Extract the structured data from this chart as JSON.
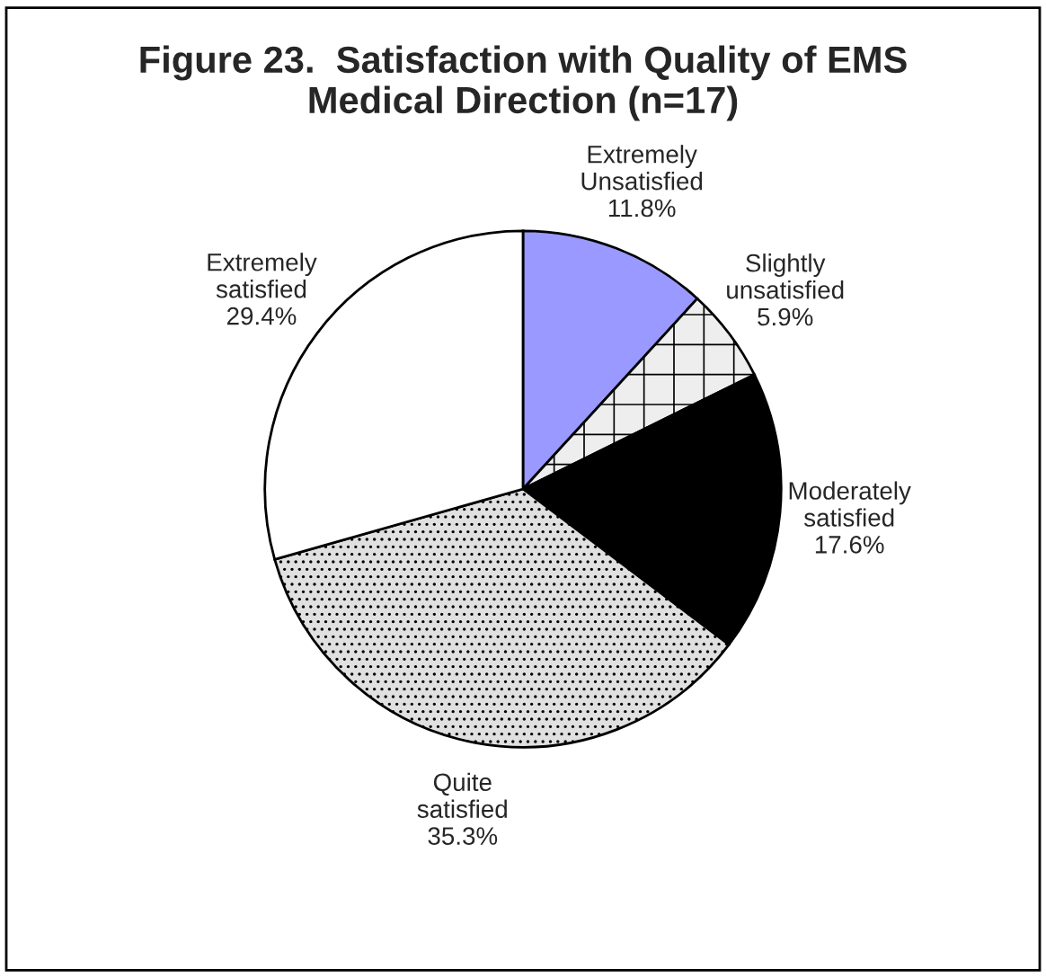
{
  "chart_data": {
    "type": "pie",
    "title": "Figure 23.  Satisfaction with Quality of EMS Medical Direction (n=17)",
    "categories": [
      "Extremely Unsatisfied",
      "Slightly unsatisfied",
      "Moderately satisfied",
      "Quite satisfied",
      "Extremely satisfied"
    ],
    "values": [
      11.8,
      5.9,
      17.6,
      35.3,
      29.4
    ],
    "colors": [
      "#9999ff",
      "#eeeeee",
      "#000000",
      "#e0e0e0",
      "#ffffff"
    ],
    "value_labels": [
      "11.8%",
      "5.9%",
      "17.6%",
      "35.3%",
      "29.4%"
    ],
    "legend": false
  }
}
